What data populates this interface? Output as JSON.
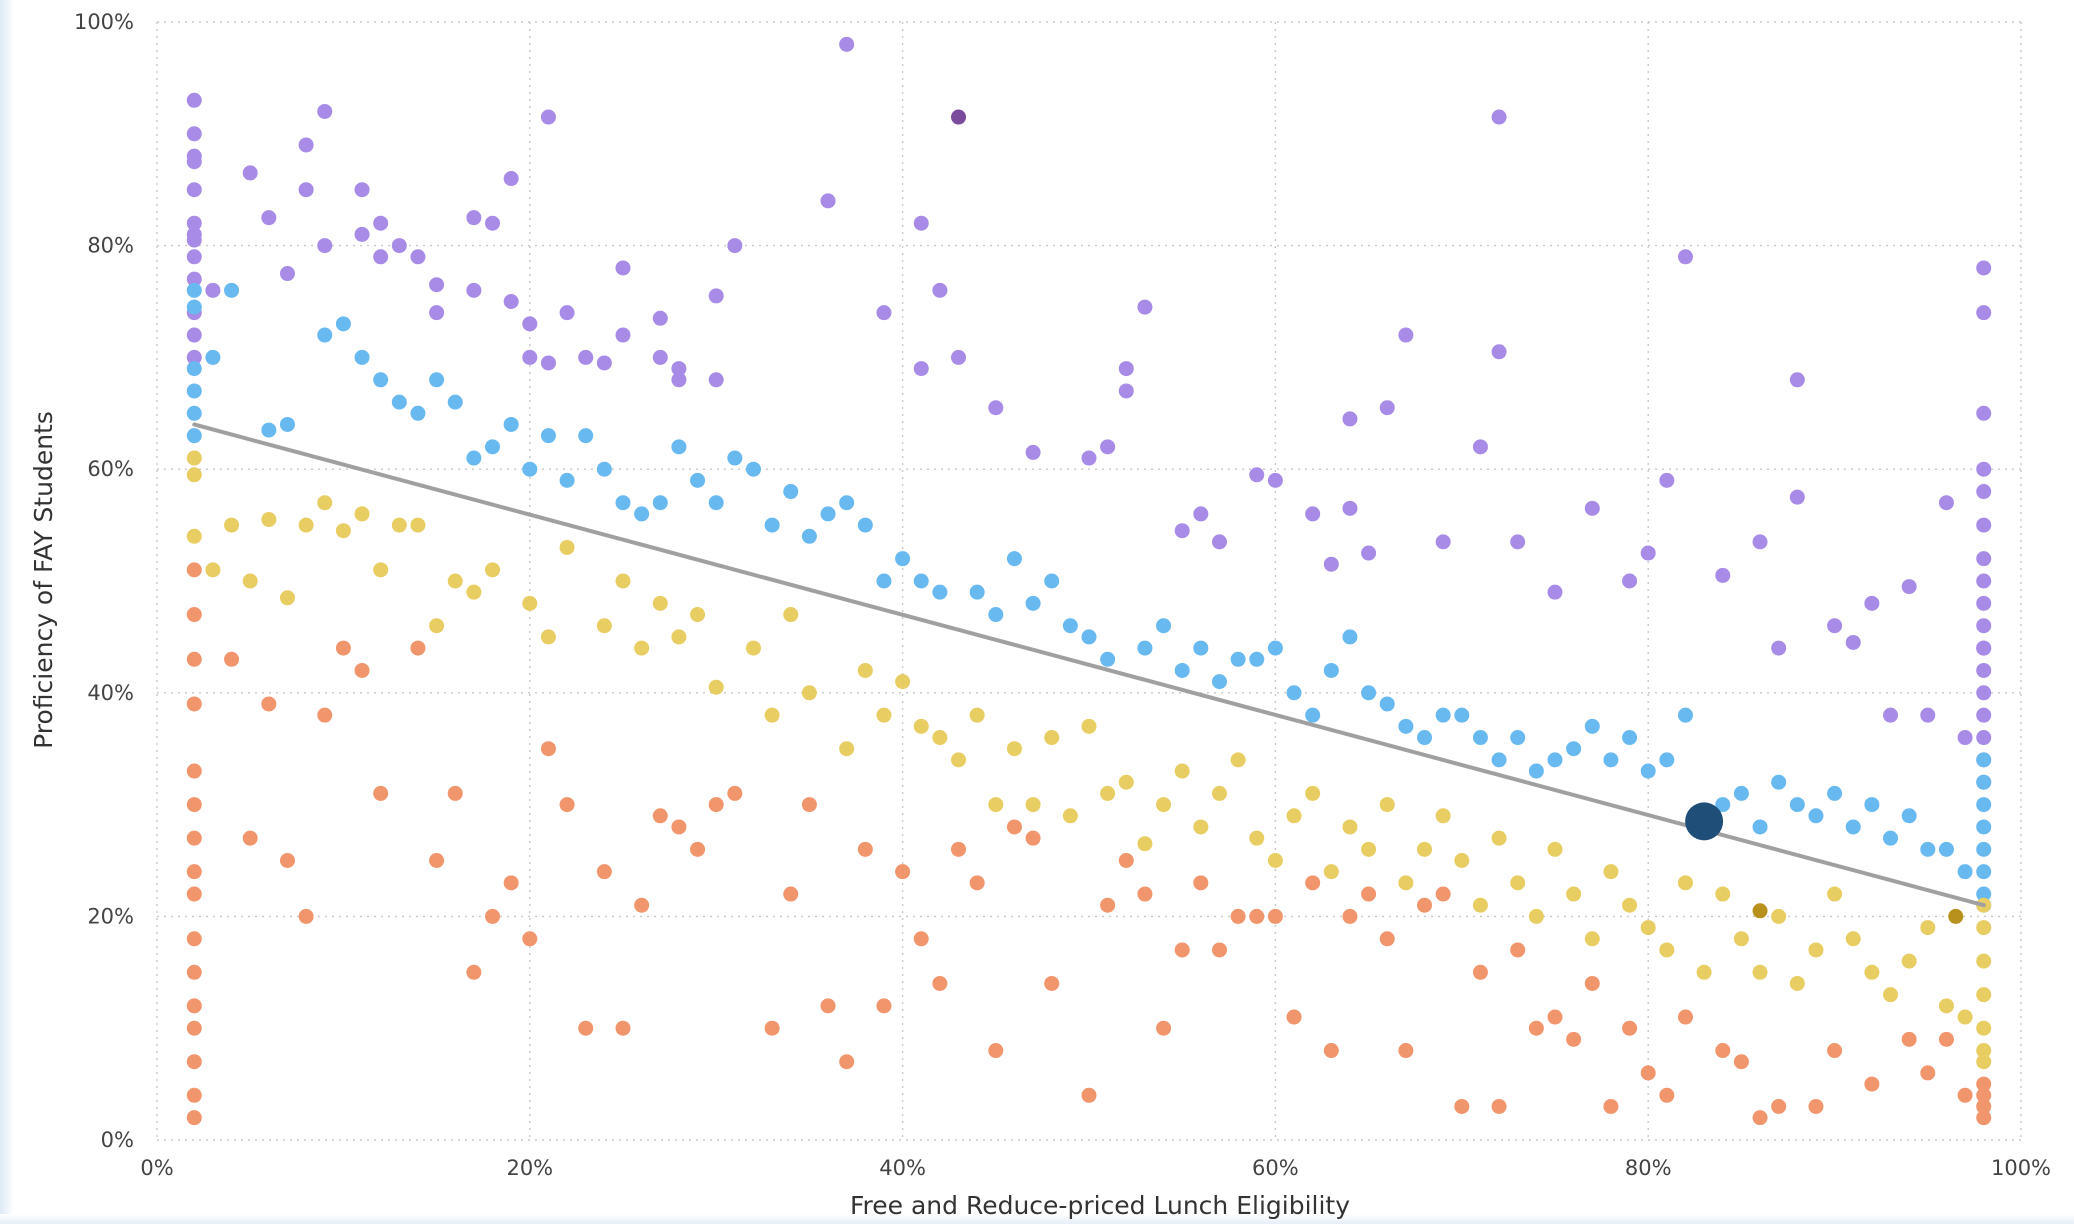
{
  "chart_data": {
    "type": "scatter",
    "title": "",
    "xlabel": "Free and Reduce-priced Lunch Eligibility",
    "ylabel": "Proficiency of FAY Students",
    "xlim": [
      0,
      100
    ],
    "ylim": [
      0,
      100
    ],
    "x_ticks": [
      "0%",
      "20%",
      "40%",
      "60%",
      "80%",
      "100%"
    ],
    "y_ticks": [
      "0%",
      "20%",
      "40%",
      "60%",
      "80%",
      "100%"
    ],
    "grid": true,
    "trend_line": {
      "color": "#a0a0a0",
      "x": [
        2,
        98
      ],
      "y": [
        64,
        21
      ]
    },
    "highlight": {
      "x": 83,
      "y": 28.5,
      "color": "#1f4e79"
    },
    "colors": {
      "high": "#a78be6",
      "above": "#68b9f0",
      "below": "#e8cd63",
      "low": "#f1956c",
      "dark_purple": "#7a4a9c",
      "dark_gold": "#b8901c"
    },
    "series": [
      {
        "group": "high",
        "x": [
          2,
          2,
          2,
          2,
          2,
          2,
          2,
          2,
          2,
          2,
          2,
          2,
          2,
          3,
          5,
          6,
          7,
          8,
          8,
          9,
          9,
          11,
          11,
          12,
          12,
          13,
          14,
          15,
          15,
          17,
          17,
          18,
          19,
          19,
          20,
          20,
          21,
          21,
          22,
          23,
          24,
          25,
          25,
          27,
          27,
          28,
          28,
          30,
          30,
          31,
          36,
          37,
          39,
          41,
          41,
          42,
          43,
          45,
          47,
          50,
          51,
          52,
          52,
          53,
          55,
          56,
          57,
          59,
          60,
          62,
          63,
          64,
          64,
          65,
          66,
          67,
          69,
          71,
          72,
          72,
          73,
          75,
          77,
          79,
          80,
          81,
          82,
          84,
          86,
          87,
          88,
          88,
          90,
          91,
          92,
          93,
          94,
          95,
          96,
          97,
          98,
          98,
          98,
          98,
          98,
          98,
          98,
          98,
          98,
          98,
          98,
          98,
          98,
          98,
          98,
          98,
          98,
          98
        ],
        "y": [
          93,
          90,
          87.5,
          85,
          82,
          81,
          79,
          77,
          74,
          72,
          70,
          88,
          80.5,
          76,
          86.5,
          82.5,
          77.5,
          89,
          85,
          92,
          80,
          85,
          81,
          82,
          79,
          80,
          79,
          76.5,
          74,
          82.5,
          76,
          82,
          86,
          75,
          73,
          70,
          91.5,
          69.5,
          74,
          70,
          69.5,
          78,
          72,
          73.5,
          70,
          68,
          69,
          75.5,
          68,
          80,
          84,
          98,
          74,
          82,
          69,
          76,
          70,
          65.5,
          61.5,
          61,
          62,
          69,
          67,
          74.5,
          54.5,
          56,
          53.5,
          59.5,
          59,
          56,
          51.5,
          64.5,
          56.5,
          52.5,
          65.5,
          72,
          53.5,
          62,
          91.5,
          70.5,
          53.5,
          49,
          56.5,
          50,
          52.5,
          59,
          79,
          50.5,
          53.5,
          44,
          57.5,
          68,
          46,
          44.5,
          48,
          38,
          49.5,
          38,
          57,
          36,
          44,
          78,
          74,
          65,
          60,
          58,
          55,
          52,
          50,
          48,
          46,
          44,
          42,
          40,
          38,
          36,
          34,
          32
        ]
      },
      {
        "group": "above",
        "x": [
          2,
          2,
          2,
          2,
          2,
          2,
          3,
          4,
          6,
          7,
          9,
          10,
          11,
          12,
          13,
          14,
          15,
          16,
          17,
          18,
          19,
          20,
          21,
          22,
          23,
          24,
          25,
          26,
          27,
          28,
          29,
          30,
          31,
          32,
          33,
          34,
          35,
          36,
          37,
          38,
          39,
          40,
          41,
          42,
          44,
          45,
          46,
          47,
          48,
          49,
          50,
          51,
          53,
          54,
          55,
          56,
          57,
          58,
          59,
          60,
          61,
          62,
          63,
          64,
          65,
          66,
          67,
          68,
          69,
          70,
          71,
          72,
          73,
          74,
          75,
          76,
          77,
          78,
          79,
          80,
          81,
          82,
          84,
          85,
          86,
          87,
          88,
          89,
          90,
          91,
          92,
          93,
          94,
          95,
          96,
          97,
          98,
          98,
          98,
          98,
          98,
          98,
          98,
          98
        ],
        "y": [
          76,
          74.5,
          69,
          67,
          65,
          63,
          70,
          76,
          63.5,
          64,
          72,
          73,
          70,
          68,
          66,
          65,
          68,
          66,
          61,
          62,
          64,
          60,
          63,
          59,
          63,
          60,
          57,
          56,
          57,
          62,
          59,
          57,
          61,
          60,
          55,
          58,
          54,
          56,
          57,
          55,
          50,
          52,
          50,
          49,
          49,
          47,
          52,
          48,
          50,
          46,
          45,
          43,
          44,
          46,
          42,
          44,
          41,
          43,
          43,
          44,
          40,
          38,
          42,
          45,
          40,
          39,
          37,
          36,
          38,
          38,
          36,
          34,
          36,
          33,
          34,
          35,
          37,
          34,
          36,
          33,
          34,
          38,
          30,
          31,
          28,
          32,
          30,
          29,
          31,
          28,
          30,
          27,
          29,
          26,
          26,
          24,
          34,
          32,
          30,
          28,
          26,
          24,
          22,
          21
        ]
      },
      {
        "group": "below",
        "x": [
          2,
          2,
          2,
          3,
          4,
          5,
          6,
          7,
          8,
          9,
          10,
          11,
          12,
          13,
          14,
          15,
          16,
          17,
          18,
          20,
          21,
          22,
          24,
          25,
          26,
          27,
          28,
          29,
          30,
          32,
          33,
          34,
          35,
          37,
          38,
          39,
          40,
          41,
          42,
          43,
          44,
          45,
          46,
          47,
          48,
          49,
          50,
          51,
          52,
          53,
          54,
          55,
          56,
          57,
          58,
          59,
          60,
          61,
          62,
          63,
          64,
          65,
          66,
          67,
          68,
          69,
          70,
          71,
          72,
          73,
          74,
          75,
          76,
          77,
          78,
          79,
          80,
          81,
          82,
          83,
          84,
          85,
          86,
          87,
          88,
          89,
          90,
          91,
          92,
          93,
          94,
          95,
          96,
          97,
          98,
          98,
          98,
          98,
          98,
          98,
          98
        ],
        "y": [
          61,
          59.5,
          54,
          51,
          55,
          50,
          55.5,
          48.5,
          55,
          57,
          54.5,
          56,
          51,
          55,
          55,
          46,
          50,
          49,
          51,
          48,
          45,
          53,
          46,
          50,
          44,
          48,
          45,
          47,
          40.5,
          44,
          38,
          47,
          40,
          35,
          42,
          38,
          41,
          37,
          36,
          34,
          38,
          30,
          35,
          30,
          36,
          29,
          37,
          31,
          32,
          26.5,
          30,
          33,
          28,
          31,
          34,
          27,
          25,
          29,
          31,
          24,
          28,
          26,
          30,
          23,
          26,
          29,
          25,
          21,
          27,
          23,
          20,
          26,
          22,
          18,
          24,
          21,
          19,
          17,
          23,
          15,
          22,
          18,
          15,
          20,
          14,
          17,
          22,
          18,
          15,
          13,
          16,
          19,
          12,
          11,
          19,
          16,
          13,
          10,
          8,
          7,
          21
        ]
      },
      {
        "group": "low",
        "x": [
          2,
          2,
          2,
          2,
          2,
          2,
          2,
          2,
          2,
          2,
          2,
          2,
          2,
          2,
          2,
          2,
          4,
          5,
          6,
          7,
          8,
          9,
          10,
          11,
          12,
          14,
          15,
          16,
          17,
          18,
          19,
          20,
          21,
          22,
          23,
          24,
          25,
          26,
          27,
          28,
          29,
          30,
          31,
          33,
          34,
          35,
          36,
          37,
          38,
          39,
          40,
          41,
          42,
          43,
          44,
          45,
          46,
          47,
          48,
          50,
          51,
          52,
          53,
          54,
          55,
          56,
          57,
          58,
          59,
          60,
          61,
          62,
          63,
          64,
          65,
          66,
          67,
          68,
          69,
          70,
          71,
          72,
          73,
          74,
          75,
          76,
          77,
          78,
          79,
          80,
          81,
          82,
          84,
          85,
          86,
          87,
          89,
          90,
          92,
          94,
          95,
          96,
          97,
          98,
          98,
          98,
          98
        ],
        "y": [
          51,
          47,
          43,
          39,
          33,
          30,
          27,
          24,
          22,
          18,
          15,
          12,
          10,
          7,
          4,
          2,
          43,
          27,
          39,
          25,
          20,
          38,
          44,
          42,
          31,
          44,
          25,
          31,
          15,
          20,
          23,
          18,
          35,
          30,
          10,
          24,
          10,
          21,
          29,
          28,
          26,
          30,
          31,
          10,
          22,
          30,
          12,
          7,
          26,
          12,
          24,
          18,
          14,
          26,
          23,
          8,
          28,
          27,
          14,
          4,
          21,
          25,
          22,
          10,
          17,
          23,
          17,
          20,
          20,
          20,
          11,
          23,
          8,
          20,
          22,
          18,
          8,
          21,
          22,
          3,
          15,
          3,
          17,
          10,
          11,
          9,
          14,
          3,
          10,
          6,
          4,
          11,
          8,
          7,
          2,
          3,
          3,
          8,
          5,
          9,
          6,
          9,
          4,
          3,
          5,
          4,
          2
        ]
      },
      {
        "group": "dark_purple",
        "x": [
          43
        ],
        "y": [
          91.5
        ]
      },
      {
        "group": "dark_gold",
        "x": [
          86,
          96.5
        ],
        "y": [
          20.5,
          20
        ]
      }
    ]
  }
}
